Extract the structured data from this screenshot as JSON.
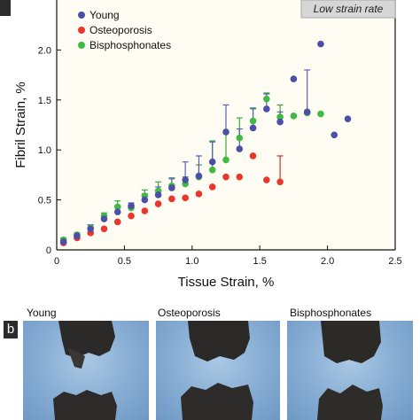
{
  "panel_b_tag": "b",
  "chart_data": {
    "type": "scatter",
    "annotation": "Low strain rate",
    "xlabel": "Tissue Strain, %",
    "ylabel": "Fibril Strain, %",
    "xlim": [
      0,
      2.5
    ],
    "ylim": [
      0,
      2.5
    ],
    "xticks": [
      "0",
      "0.5",
      "1.0",
      "1.5",
      "2.0",
      "2.5"
    ],
    "xtick_values": [
      0,
      0.5,
      1.0,
      1.5,
      2.0,
      2.5
    ],
    "yticks": [
      "0",
      "0.5",
      "1.0",
      "1.5",
      "2.0"
    ],
    "ytick_values": [
      0,
      0.5,
      1.0,
      1.5,
      2.0
    ],
    "legend_placement": "top-left",
    "series": [
      {
        "name": "Young",
        "color": "#4b4fa8",
        "errorbar_color": "#5a5fb8",
        "points": [
          {
            "x": 0.05,
            "y": 0.08,
            "err": 0.03
          },
          {
            "x": 0.15,
            "y": 0.14,
            "err": 0.02
          },
          {
            "x": 0.25,
            "y": 0.21,
            "err": 0.04
          },
          {
            "x": 0.35,
            "y": 0.31,
            "err": 0.03
          },
          {
            "x": 0.45,
            "y": 0.38,
            "err": 0.05
          },
          {
            "x": 0.55,
            "y": 0.44,
            "err": 0.03
          },
          {
            "x": 0.65,
            "y": 0.5,
            "err": 0.06
          },
          {
            "x": 0.75,
            "y": 0.55,
            "err": 0.08
          },
          {
            "x": 0.85,
            "y": 0.62,
            "err": 0.1
          },
          {
            "x": 0.95,
            "y": 0.7,
            "err": 0.18
          },
          {
            "x": 1.05,
            "y": 0.74,
            "err": 0.2
          },
          {
            "x": 1.15,
            "y": 0.88,
            "err": 0.2
          },
          {
            "x": 1.25,
            "y": 1.18,
            "err": 0.27
          },
          {
            "x": 1.35,
            "y": 1.01,
            "err": 0.2
          },
          {
            "x": 1.45,
            "y": 1.22,
            "err": 0.2
          },
          {
            "x": 1.55,
            "y": 1.41,
            "err": 0.15
          },
          {
            "x": 1.65,
            "y": 1.28,
            "err": 0.1
          },
          {
            "x": 1.75,
            "y": 1.71,
            "err": 0
          },
          {
            "x": 1.85,
            "y": 1.38,
            "err": 0.42
          },
          {
            "x": 1.95,
            "y": 2.06,
            "err": 0
          },
          {
            "x": 2.05,
            "y": 1.15,
            "err": 0
          },
          {
            "x": 2.15,
            "y": 1.31,
            "err": 0
          }
        ]
      },
      {
        "name": "Osteoporosis",
        "color": "#e8372c",
        "errorbar_color": "#d2302a",
        "points": [
          {
            "x": 0.05,
            "y": 0.07,
            "err": 0
          },
          {
            "x": 0.15,
            "y": 0.12,
            "err": 0
          },
          {
            "x": 0.25,
            "y": 0.17,
            "err": 0
          },
          {
            "x": 0.35,
            "y": 0.21,
            "err": 0
          },
          {
            "x": 0.45,
            "y": 0.28,
            "err": 0
          },
          {
            "x": 0.55,
            "y": 0.34,
            "err": 0
          },
          {
            "x": 0.65,
            "y": 0.39,
            "err": 0
          },
          {
            "x": 0.75,
            "y": 0.46,
            "err": 0
          },
          {
            "x": 0.85,
            "y": 0.51,
            "err": 0
          },
          {
            "x": 0.95,
            "y": 0.52,
            "err": 0
          },
          {
            "x": 1.05,
            "y": 0.56,
            "err": 0
          },
          {
            "x": 1.15,
            "y": 0.63,
            "err": 0
          },
          {
            "x": 1.25,
            "y": 0.73,
            "err": 0
          },
          {
            "x": 1.35,
            "y": 0.73,
            "err": 0
          },
          {
            "x": 1.45,
            "y": 0.94,
            "err": 0
          },
          {
            "x": 1.55,
            "y": 0.7,
            "err": 0
          },
          {
            "x": 1.65,
            "y": 0.68,
            "err": 0.26
          }
        ]
      },
      {
        "name": "Bisphosphonates",
        "color": "#42b845",
        "errorbar_color": "#3aa83d",
        "points": [
          {
            "x": 0.05,
            "y": 0.1,
            "err": 0.02
          },
          {
            "x": 0.15,
            "y": 0.15,
            "err": 0.02
          },
          {
            "x": 0.25,
            "y": 0.22,
            "err": 0.03
          },
          {
            "x": 0.35,
            "y": 0.34,
            "err": 0.03
          },
          {
            "x": 0.45,
            "y": 0.43,
            "err": 0.06
          },
          {
            "x": 0.55,
            "y": 0.42,
            "err": 0.03
          },
          {
            "x": 0.65,
            "y": 0.54,
            "err": 0.06
          },
          {
            "x": 0.75,
            "y": 0.59,
            "err": 0.09
          },
          {
            "x": 0.85,
            "y": 0.64,
            "err": 0.07
          },
          {
            "x": 0.95,
            "y": 0.66,
            "err": 0.07
          },
          {
            "x": 1.05,
            "y": 0.73,
            "err": 0.12
          },
          {
            "x": 1.15,
            "y": 0.8,
            "err": 0.29
          },
          {
            "x": 1.25,
            "y": 0.9,
            "err": 0.28
          },
          {
            "x": 1.35,
            "y": 1.12,
            "err": 0.2
          },
          {
            "x": 1.45,
            "y": 1.29,
            "err": 0.12
          },
          {
            "x": 1.55,
            "y": 1.51,
            "err": 0.06
          },
          {
            "x": 1.65,
            "y": 1.33,
            "err": 0.12
          },
          {
            "x": 1.75,
            "y": 1.34,
            "err": 0
          },
          {
            "x": 1.85,
            "y": 1.37,
            "err": 0
          },
          {
            "x": 1.95,
            "y": 1.36,
            "err": 0
          }
        ]
      }
    ]
  },
  "photos": [
    {
      "label": "Young"
    },
    {
      "label": "Osteoporosis"
    },
    {
      "label": "Bisphosphonates"
    }
  ]
}
